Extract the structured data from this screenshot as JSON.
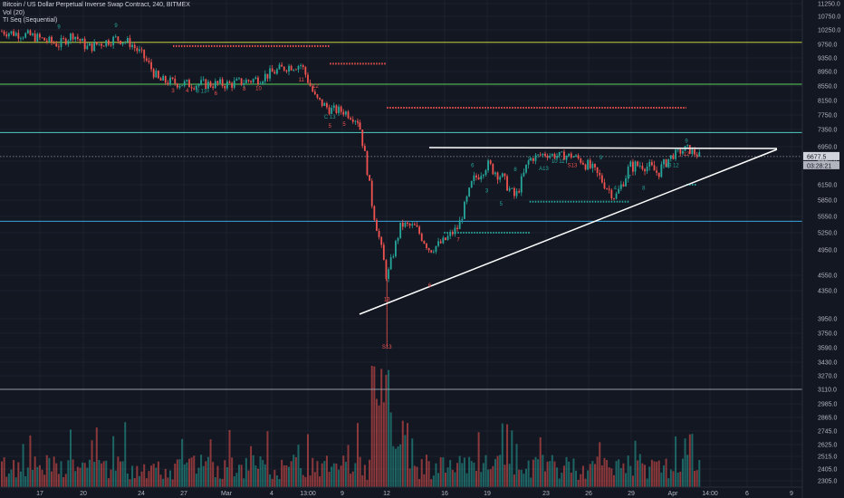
{
  "title": "Bitcoin / US Dollar Perpetual Inverse Swap Contract, 240, BITMEX",
  "indicators": [
    "Vol (20)",
    "TI Seq (Sequential)"
  ],
  "chart_data": {
    "type": "candlestick",
    "y_axis": {
      "ticks": [
        11250,
        10750,
        10250,
        9750,
        9350,
        8950,
        8550,
        8150,
        7750,
        7350,
        6950,
        6550,
        6150,
        5850,
        5550,
        5250,
        4950,
        4550,
        4350,
        3950,
        3750,
        3590,
        3430,
        3270,
        3110,
        2985,
        2865,
        2745,
        2625,
        2515,
        2405,
        2305
      ],
      "tick_labels": [
        "11250.0",
        "10750.0",
        "10250.0",
        "9750.0",
        "9350.0",
        "8950.0",
        "8550.0",
        "8150.0",
        "7750.0",
        "7350.0",
        "6950.0",
        "6550.0",
        "6150.0",
        "5850.0",
        "5550.0",
        "5250.0",
        "4950.0",
        "4550.0",
        "4350.0",
        "3950.0",
        "3750.0",
        "3590.0",
        "3430.0",
        "3270.0",
        "3110.0",
        "2985.0",
        "2865.0",
        "2745.0",
        "2625.0",
        "2515.0",
        "2405.0",
        "2305.0"
      ],
      "scale": "log",
      "range": [
        2250,
        11700
      ]
    },
    "x_axis": {
      "tick_labels": [
        "17",
        "20",
        "24",
        "27",
        "Mar",
        "4",
        "13:00",
        "9",
        "12",
        "16",
        "19",
        "23",
        "26",
        "29",
        "Apr",
        "14:00",
        "6",
        "9"
      ]
    },
    "price_labels": {
      "last_price": "6677.5",
      "countdown": "03:28:21"
    },
    "horizontal_levels": [
      {
        "price": 9820,
        "color": "#c6d43a"
      },
      {
        "price": 8600,
        "color": "#5bd35b"
      },
      {
        "price": 7280,
        "color": "#4fd0c4"
      },
      {
        "price": 5460,
        "color": "#3aa7e0"
      },
      {
        "price": 3110,
        "color": "#9598a1"
      },
      {
        "price": 6677.5,
        "color": "#9598a1",
        "style": "dotted"
      }
    ],
    "dotted_levels": [
      {
        "price": 9700,
        "color": "#ef5350",
        "x_from": "Feb 27",
        "x_to": "Mar 9"
      },
      {
        "price": 9180,
        "color": "#ef5350",
        "x_from": "Mar 9",
        "x_to": "Mar 13"
      },
      {
        "price": 7950,
        "color": "#ef5350",
        "x_from": "Mar 13",
        "x_to": "Apr 3"
      },
      {
        "price": 5820,
        "color": "#26a69a",
        "x_from": "Mar 23",
        "x_to": "Mar 30"
      },
      {
        "price": 5250,
        "color": "#26a69a",
        "x_from": "Mar 17",
        "x_to": "Mar 23"
      },
      {
        "price": 6150,
        "color": "#26a69a",
        "x_from": "Apr 3",
        "x_to": "Apr 3"
      }
    ],
    "trendlines": [
      {
        "name": "resistance",
        "x1": "Mar 16",
        "y1": 6980,
        "x2": "Apr 4",
        "y2": 6990,
        "color": "#ffffff"
      },
      {
        "name": "support",
        "x1": "Mar 10",
        "y1": 4020,
        "x2": "Apr 4",
        "y2": 6960,
        "color": "#ffffff"
      }
    ],
    "price_path": [
      {
        "x": "Feb 15",
        "price": 10200
      },
      {
        "x": "Feb 17",
        "price": 10050
      },
      {
        "x": "Feb 19",
        "price": 9750
      },
      {
        "x": "Feb 20",
        "price": 10100
      },
      {
        "x": "Feb 21",
        "price": 9650
      },
      {
        "x": "Feb 23",
        "price": 9950
      },
      {
        "x": "Feb 24",
        "price": 9800
      },
      {
        "x": "Feb 25",
        "price": 9350
      },
      {
        "x": "Feb 26",
        "price": 8700
      },
      {
        "x": "Feb 28",
        "price": 8600
      },
      {
        "x": "Mar 1",
        "price": 8600
      },
      {
        "x": "Mar 2",
        "price": 8600
      },
      {
        "x": "Mar 4",
        "price": 8750
      },
      {
        "x": "Mar 6",
        "price": 9100
      },
      {
        "x": "Mar 7",
        "price": 9150
      },
      {
        "x": "Mar 8",
        "price": 8200
      },
      {
        "x": "Mar 9",
        "price": 7900
      },
      {
        "x": "Mar 10",
        "price": 7850
      },
      {
        "x": "Mar 11",
        "price": 7600
      },
      {
        "x": "Mar 12",
        "price": 5700
      },
      {
        "x": "Mar 13",
        "price": 4500
      },
      {
        "x": "Mar 14",
        "price": 5400
      },
      {
        "x": "Mar 15",
        "price": 5350
      },
      {
        "x": "Mar 16",
        "price": 4950
      },
      {
        "x": "Mar 17",
        "price": 5100
      },
      {
        "x": "Mar 18",
        "price": 5350
      },
      {
        "x": "Mar 19",
        "price": 6200
      },
      {
        "x": "Mar 20",
        "price": 6500
      },
      {
        "x": "Mar 21",
        "price": 6300
      },
      {
        "x": "Mar 22",
        "price": 5900
      },
      {
        "x": "Mar 23",
        "price": 6600
      },
      {
        "x": "Mar 24",
        "price": 6750
      },
      {
        "x": "Mar 25",
        "price": 6700
      },
      {
        "x": "Mar 26",
        "price": 6700
      },
      {
        "x": "Mar 27",
        "price": 6500
      },
      {
        "x": "Mar 28",
        "price": 6250
      },
      {
        "x": "Mar 29",
        "price": 5900
      },
      {
        "x": "Mar 30",
        "price": 6450
      },
      {
        "x": "Mar 31",
        "price": 6500
      },
      {
        "x": "Apr 1",
        "price": 6350
      },
      {
        "x": "Apr 2",
        "price": 6700
      },
      {
        "x": "Apr 3",
        "price": 6900
      },
      {
        "x": "Apr 4",
        "price": 6677.5
      }
    ],
    "sequential_labels": [
      {
        "x": "Feb 19",
        "price": 10300,
        "text": "9",
        "color": "#26a69a"
      },
      {
        "x": "Feb 23",
        "price": 10350,
        "text": "9",
        "color": "#26a69a"
      },
      {
        "x": "Feb 27",
        "price": 8370,
        "text": "3",
        "color": "#ef5350"
      },
      {
        "x": "Feb 28",
        "price": 8380,
        "text": "4",
        "color": "#ef5350"
      },
      {
        "x": "Feb 29",
        "price": 8360,
        "text": "8 13",
        "color": "#26a69a"
      },
      {
        "x": "Mar 1",
        "price": 8300,
        "text": "6",
        "color": "#ef5350"
      },
      {
        "x": "Mar 3",
        "price": 8420,
        "text": "8",
        "color": "#ef5350"
      },
      {
        "x": "Mar 4",
        "price": 8440,
        "text": "10",
        "color": "#ef5350"
      },
      {
        "x": "Mar 7",
        "price": 8680,
        "text": "11",
        "color": "#ef5350"
      },
      {
        "x": "Mar 8",
        "price": 8500,
        "text": "12",
        "color": "#ef5350"
      },
      {
        "x": "Mar 9",
        "price": 7400,
        "text": "5",
        "color": "#ef5350"
      },
      {
        "x": "Mar 9",
        "price": 7650,
        "text": "C 13",
        "color": "#26a69a"
      },
      {
        "x": "Mar 10",
        "price": 7450,
        "text": "5",
        "color": "#ef5350"
      },
      {
        "x": "Mar 11",
        "price": 7420,
        "text": "9",
        "color": "#ef5350"
      },
      {
        "x": "Mar 13",
        "price": 4200,
        "text": "13",
        "color": "#ef5350"
      },
      {
        "x": "Mar 13",
        "price": 3580,
        "text": "S13",
        "color": "#ef5350"
      },
      {
        "x": "Mar 16",
        "price": 4400,
        "text": "6",
        "color": "#ef5350"
      },
      {
        "x": "Mar 18",
        "price": 5100,
        "text": "7",
        "color": "#ef5350"
      },
      {
        "x": "Mar 19",
        "price": 6450,
        "text": "6",
        "color": "#26a69a"
      },
      {
        "x": "Mar 20",
        "price": 6000,
        "text": "3",
        "color": "#26a69a"
      },
      {
        "x": "Mar 21",
        "price": 5750,
        "text": "5",
        "color": "#26a69a"
      },
      {
        "x": "Mar 22",
        "price": 6380,
        "text": "8",
        "color": "#26a69a"
      },
      {
        "x": "Mar 23",
        "price": 6580,
        "text": "9",
        "color": "#26a69a"
      },
      {
        "x": "Mar 24",
        "price": 6400,
        "text": "A13",
        "color": "#26a69a"
      },
      {
        "x": "Mar 25",
        "price": 6520,
        "text": "10 11",
        "color": "#26a69a"
      },
      {
        "x": "Mar 26",
        "price": 6450,
        "text": "S13",
        "color": "#ef5350"
      },
      {
        "x": "Mar 28",
        "price": 6600,
        "text": "9",
        "color": "#26a69a"
      },
      {
        "x": "Mar 29",
        "price": 6050,
        "text": "4",
        "color": "#26a69a"
      },
      {
        "x": "Mar 30",
        "price": 6250,
        "text": "7",
        "color": "#26a69a"
      },
      {
        "x": "Mar 31",
        "price": 6050,
        "text": "8",
        "color": "#26a69a"
      },
      {
        "x": "Apr 2",
        "price": 6450,
        "text": "13 12",
        "color": "#26a69a"
      },
      {
        "x": "Apr 3",
        "price": 7050,
        "text": "9",
        "color": "#26a69a"
      },
      {
        "x": "Apr 3",
        "price": 6700,
        "text": "12",
        "color": "#ef5350"
      }
    ],
    "volume_note": "volume histogram in lower pane, spike on Mar 12-13",
    "grid": true,
    "colors": {
      "up": "#26a69a",
      "down": "#ef5350",
      "background": "#131722",
      "grid": "#1e222d"
    }
  }
}
